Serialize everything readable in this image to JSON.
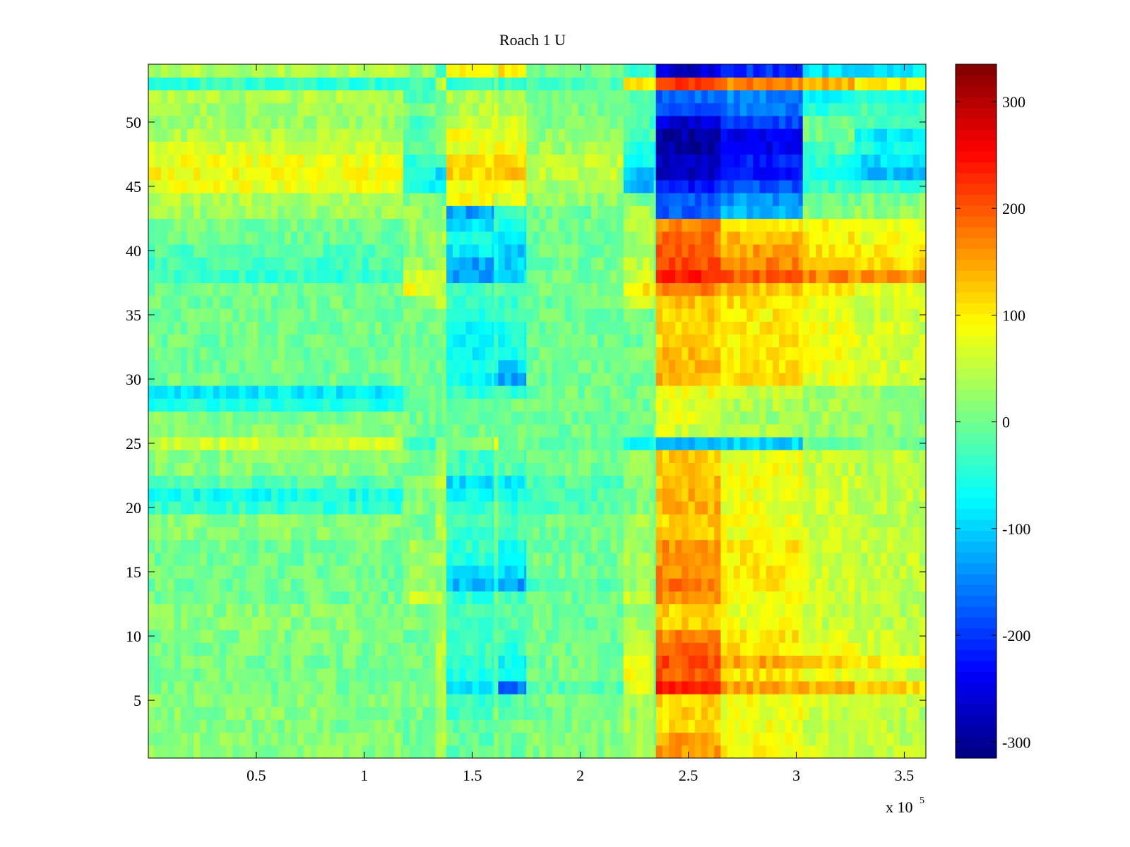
{
  "chart_data": {
    "type": "heatmap",
    "title": "Roach 1 U",
    "xlabel": "",
    "ylabel": "",
    "x_range": [
      0,
      360000
    ],
    "y_range": [
      0.5,
      54.5
    ],
    "rows": 54,
    "x_ticks": [
      50000,
      100000,
      150000,
      200000,
      250000,
      300000,
      350000
    ],
    "x_tick_labels": [
      "0.5",
      "1",
      "1.5",
      "2",
      "2.5",
      "3",
      "3.5"
    ],
    "x_exponent_base": "x 10",
    "x_exponent_power": "5",
    "y_ticks": [
      5,
      10,
      15,
      20,
      25,
      30,
      35,
      40,
      45,
      50
    ],
    "y_tick_labels": [
      "5",
      "10",
      "15",
      "20",
      "25",
      "30",
      "35",
      "40",
      "45",
      "50"
    ],
    "colorbar": {
      "colormap": "jet",
      "range": [
        -315,
        335
      ],
      "ticks": [
        300,
        200,
        100,
        0,
        -100,
        -200,
        -300
      ],
      "tick_labels": [
        "300",
        "200",
        "100",
        "0",
        "-100",
        "-200",
        "-300"
      ]
    },
    "segments_x": [
      0,
      118000,
      133000,
      138000,
      160000,
      162000,
      175000,
      220000,
      234000,
      235000,
      265000,
      303000,
      327000,
      360000
    ],
    "default_segment_values": [
      15,
      5,
      40,
      -30,
      10,
      -20,
      0,
      30,
      0,
      120,
      80,
      55,
      45
    ],
    "row_segment_values": {
      "1": [
        15,
        0,
        40,
        -10,
        10,
        0,
        10,
        40,
        0,
        150,
        90,
        60,
        50
      ],
      "2": [
        15,
        0,
        40,
        -10,
        10,
        0,
        10,
        40,
        0,
        150,
        90,
        60,
        50
      ],
      "3": [
        10,
        0,
        40,
        -10,
        10,
        0,
        10,
        40,
        0,
        110,
        80,
        60,
        50
      ],
      "6": [
        5,
        0,
        40,
        -90,
        -40,
        -160,
        -20,
        80,
        0,
        230,
        150,
        130,
        120
      ],
      "7": [
        5,
        0,
        40,
        -60,
        0,
        -80,
        0,
        80,
        0,
        200,
        110,
        80,
        60
      ],
      "8": [
        5,
        0,
        40,
        -40,
        0,
        -70,
        0,
        70,
        0,
        210,
        150,
        120,
        100
      ],
      "9": [
        5,
        0,
        70,
        -30,
        0,
        -40,
        0,
        50,
        0,
        200,
        110,
        80,
        60
      ],
      "10": [
        10,
        0,
        50,
        -30,
        0,
        -30,
        0,
        40,
        0,
        170,
        100,
        70,
        60
      ],
      "13": [
        0,
        50,
        40,
        -40,
        0,
        -30,
        0,
        50,
        0,
        170,
        90,
        60,
        50
      ],
      "14": [
        0,
        30,
        30,
        -110,
        -60,
        -130,
        -20,
        30,
        0,
        180,
        100,
        60,
        50
      ],
      "15": [
        0,
        30,
        30,
        -80,
        -40,
        -100,
        0,
        30,
        0,
        170,
        100,
        60,
        50
      ],
      "16": [
        0,
        30,
        30,
        -50,
        -20,
        -70,
        0,
        30,
        0,
        160,
        100,
        60,
        50
      ],
      "17": [
        0,
        30,
        30,
        -40,
        0,
        -60,
        0,
        30,
        0,
        160,
        100,
        60,
        50
      ],
      "20": [
        -40,
        10,
        40,
        -30,
        0,
        -40,
        -20,
        10,
        0,
        140,
        80,
        60,
        50
      ],
      "21": [
        -60,
        10,
        40,
        -70,
        -30,
        -60,
        -20,
        10,
        0,
        140,
        80,
        60,
        50
      ],
      "22": [
        -20,
        10,
        50,
        -90,
        -40,
        -80,
        -20,
        10,
        0,
        130,
        80,
        60,
        50
      ],
      "25": [
        60,
        -40,
        20,
        20,
        90,
        0,
        0,
        -60,
        -60,
        -110,
        -100,
        0,
        0
      ],
      "26": [
        20,
        0,
        0,
        0,
        0,
        0,
        0,
        0,
        0,
        60,
        40,
        30,
        20
      ],
      "27": [
        10,
        0,
        0,
        0,
        0,
        0,
        0,
        0,
        0,
        80,
        30,
        30,
        20
      ],
      "28": [
        -50,
        0,
        0,
        0,
        0,
        0,
        0,
        0,
        0,
        70,
        40,
        30,
        20
      ],
      "29": [
        -80,
        0,
        0,
        -40,
        -30,
        -40,
        0,
        0,
        0,
        80,
        50,
        30,
        20
      ],
      "30": [
        0,
        0,
        0,
        -70,
        -90,
        -130,
        0,
        0,
        0,
        140,
        110,
        80,
        60
      ],
      "31": [
        0,
        0,
        0,
        -50,
        -60,
        -100,
        0,
        0,
        0,
        140,
        110,
        80,
        60
      ],
      "32": [
        0,
        0,
        0,
        -70,
        -40,
        -60,
        0,
        0,
        0,
        130,
        100,
        80,
        60
      ],
      "33": [
        0,
        0,
        0,
        -70,
        -40,
        -60,
        0,
        0,
        0,
        120,
        100,
        80,
        60
      ],
      "34": [
        0,
        0,
        0,
        -80,
        -40,
        -60,
        0,
        0,
        0,
        120,
        100,
        80,
        60
      ],
      "35": [
        0,
        0,
        0,
        -40,
        -20,
        -40,
        0,
        0,
        0,
        120,
        100,
        80,
        60
      ],
      "36": [
        0,
        0,
        40,
        -30,
        0,
        -30,
        0,
        60,
        0,
        130,
        110,
        80,
        60
      ],
      "37": [
        0,
        80,
        40,
        -30,
        0,
        -30,
        0,
        100,
        80,
        170,
        130,
        100,
        80
      ],
      "38": [
        -40,
        60,
        60,
        -130,
        -80,
        -90,
        0,
        60,
        0,
        240,
        200,
        170,
        160
      ],
      "39": [
        -30,
        30,
        40,
        -130,
        -60,
        -100,
        0,
        50,
        0,
        210,
        170,
        130,
        110
      ],
      "40": [
        -20,
        20,
        30,
        -80,
        -60,
        -100,
        0,
        40,
        0,
        190,
        150,
        110,
        100
      ],
      "41": [
        0,
        20,
        40,
        -60,
        -80,
        -70,
        0,
        40,
        0,
        180,
        130,
        100,
        80
      ],
      "42": [
        0,
        20,
        30,
        -90,
        -40,
        -60,
        0,
        40,
        0,
        170,
        110,
        90,
        80
      ],
      "43": [
        30,
        20,
        20,
        -130,
        -60,
        -30,
        0,
        40,
        0,
        -170,
        -120,
        10,
        20
      ],
      "44": [
        40,
        0,
        0,
        90,
        60,
        80,
        20,
        0,
        0,
        -180,
        -140,
        0,
        10
      ],
      "45": [
        80,
        -60,
        -60,
        90,
        110,
        90,
        30,
        -120,
        -60,
        -220,
        -180,
        -40,
        -40
      ],
      "46": [
        90,
        -40,
        -100,
        120,
        140,
        120,
        50,
        -100,
        -100,
        -270,
        -220,
        -60,
        -110
      ],
      "47": [
        80,
        -40,
        -30,
        110,
        130,
        110,
        50,
        -60,
        -60,
        -270,
        -220,
        -40,
        -90
      ],
      "48": [
        60,
        -20,
        0,
        80,
        110,
        80,
        30,
        -40,
        -60,
        -290,
        -240,
        -20,
        -60
      ],
      "49": [
        40,
        -20,
        0,
        80,
        80,
        70,
        20,
        -30,
        -30,
        -290,
        -240,
        0,
        -80
      ],
      "50": [
        30,
        -20,
        0,
        60,
        80,
        60,
        10,
        -30,
        -30,
        -260,
        -190,
        0,
        -30
      ],
      "51": [
        30,
        0,
        0,
        40,
        70,
        40,
        10,
        -20,
        -20,
        -190,
        -160,
        -50,
        -30
      ],
      "52": [
        40,
        -20,
        10,
        40,
        60,
        40,
        10,
        -20,
        -20,
        -170,
        -150,
        -80,
        -50
      ],
      "53": [
        -40,
        -30,
        60,
        -40,
        10,
        -40,
        -20,
        100,
        120,
        220,
        170,
        140,
        100
      ],
      "54": [
        40,
        20,
        -40,
        100,
        70,
        100,
        0,
        -40,
        -60,
        -260,
        -200,
        -90,
        -80
      ]
    }
  }
}
